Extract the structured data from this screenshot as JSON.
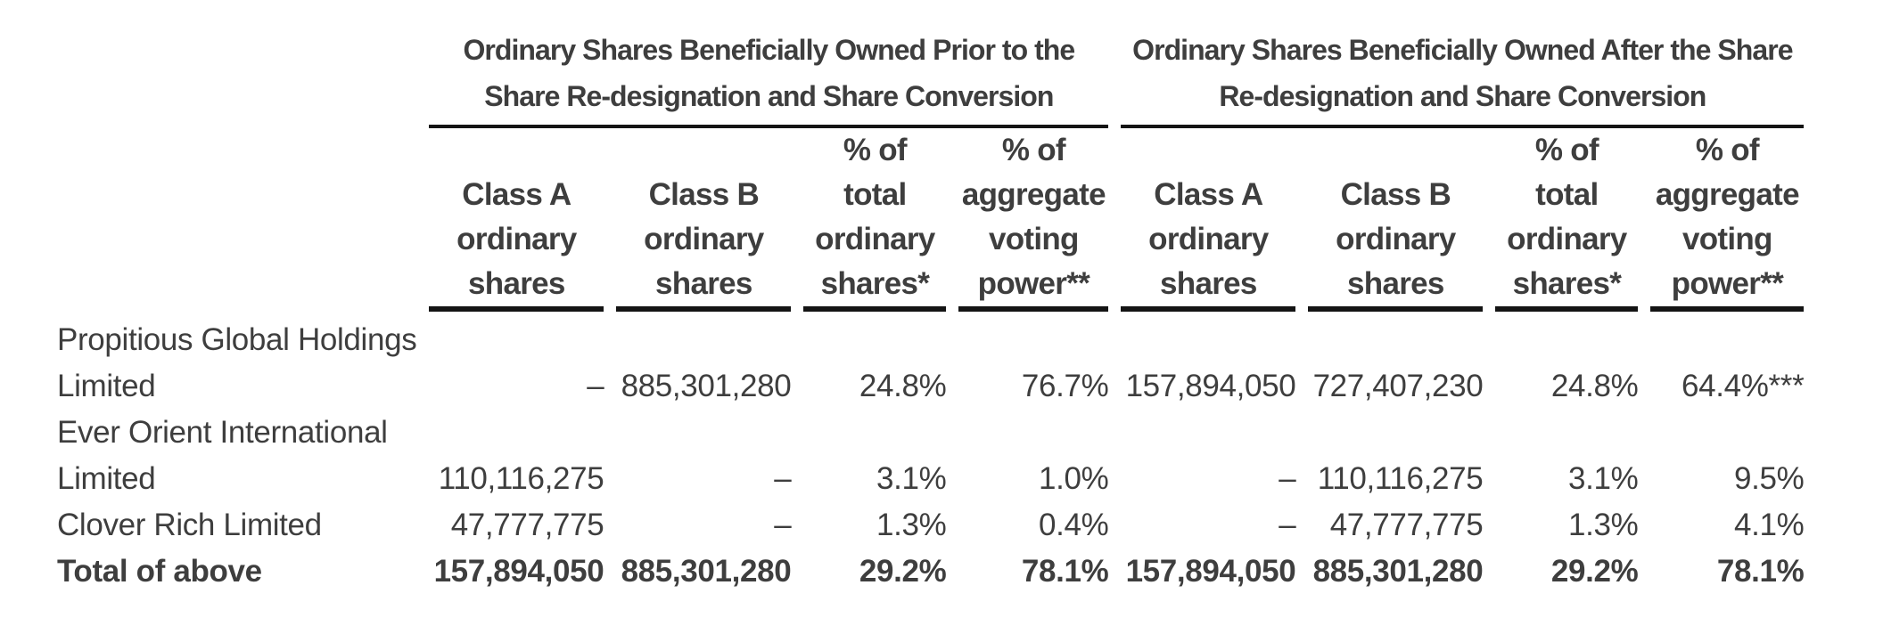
{
  "colors": {
    "text": "#3e3e3e",
    "rule": "#141414",
    "background": "#ffffff"
  },
  "table": {
    "group_headers": [
      {
        "line1": "Ordinary Shares Beneficially Owned Prior to the",
        "line2": "Share Re-designation and Share Conversion"
      },
      {
        "line1": "Ordinary Shares Beneficially Owned After the Share",
        "line2": "Re-designation and Share Conversion"
      }
    ],
    "columns": [
      {
        "lines": [
          "",
          "Class A",
          "ordinary",
          "shares"
        ]
      },
      {
        "lines": [
          "",
          "Class B",
          "ordinary",
          "shares"
        ]
      },
      {
        "lines": [
          "% of",
          "total",
          "ordinary",
          "shares*"
        ]
      },
      {
        "lines": [
          "% of",
          "aggregate",
          "voting",
          "power**"
        ]
      },
      {
        "lines": [
          "",
          "Class A",
          "ordinary",
          "shares"
        ]
      },
      {
        "lines": [
          "",
          "Class B",
          "ordinary",
          "shares"
        ]
      },
      {
        "lines": [
          "% of",
          "total",
          "ordinary",
          "shares*"
        ]
      },
      {
        "lines": [
          "% of",
          "aggregate",
          "voting",
          "power**"
        ]
      }
    ],
    "rows": [
      {
        "name": "Propitious Global Holdings",
        "values": [
          "",
          "",
          "",
          "",
          "",
          "",
          "",
          ""
        ]
      },
      {
        "name": "Limited",
        "values": [
          "–",
          "885,301,280",
          "24.8%",
          "76.7%",
          "157,894,050",
          "727,407,230",
          "24.8%",
          "64.4%***"
        ]
      },
      {
        "name": "Ever Orient International",
        "values": [
          "",
          "",
          "",
          "",
          "",
          "",
          "",
          ""
        ]
      },
      {
        "name": "Limited",
        "values": [
          "110,116,275",
          "–",
          "3.1%",
          "1.0%",
          "–",
          "110,116,275",
          "3.1%",
          "9.5%"
        ]
      },
      {
        "name": "Clover Rich Limited",
        "values": [
          "47,777,775",
          "–",
          "1.3%",
          "0.4%",
          "–",
          "47,777,775",
          "1.3%",
          "4.1%"
        ]
      },
      {
        "name": "Total of above",
        "values": [
          "157,894,050",
          "885,301,280",
          "29.2%",
          "78.1%",
          "157,894,050",
          "885,301,280",
          "29.2%",
          "78.1%"
        ]
      }
    ]
  }
}
